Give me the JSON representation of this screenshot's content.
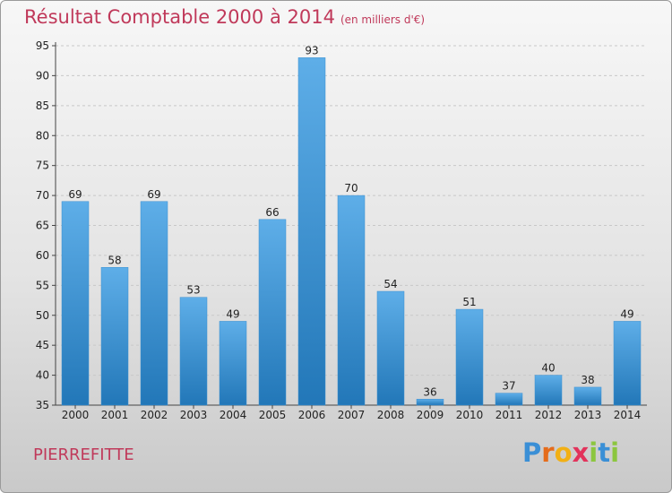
{
  "header": {
    "title": "Résultat Comptable 2000 à 2014",
    "subtitle": "(en milliers d'€)"
  },
  "footer": {
    "commune": "PIERREFITTE",
    "brand_letters": [
      "P",
      "r",
      "o",
      "x",
      "i",
      "t",
      "i"
    ]
  },
  "colors": {
    "title": "#c0395a",
    "bar_light": "#5eaee8",
    "bar_dark": "#2277b8",
    "brand": [
      "#3a8fd6",
      "#e56c1b",
      "#f2b015",
      "#e2335b",
      "#8cc63f",
      "#3a8fd6",
      "#8cc63f"
    ]
  },
  "chart_data": {
    "type": "bar",
    "title": "Résultat Comptable 2000 à 2014",
    "unit": "en milliers d'€",
    "categories": [
      "2000",
      "2001",
      "2002",
      "2003",
      "2004",
      "2005",
      "2006",
      "2007",
      "2008",
      "2009",
      "2010",
      "2011",
      "2012",
      "2013",
      "2014"
    ],
    "values": [
      69,
      58,
      69,
      53,
      49,
      66,
      93,
      70,
      54,
      36,
      51,
      37,
      40,
      38,
      49
    ],
    "ylim": [
      35,
      95
    ],
    "yticks": [
      35,
      40,
      45,
      50,
      55,
      60,
      65,
      70,
      75,
      80,
      85,
      90,
      95
    ],
    "grid": true
  }
}
